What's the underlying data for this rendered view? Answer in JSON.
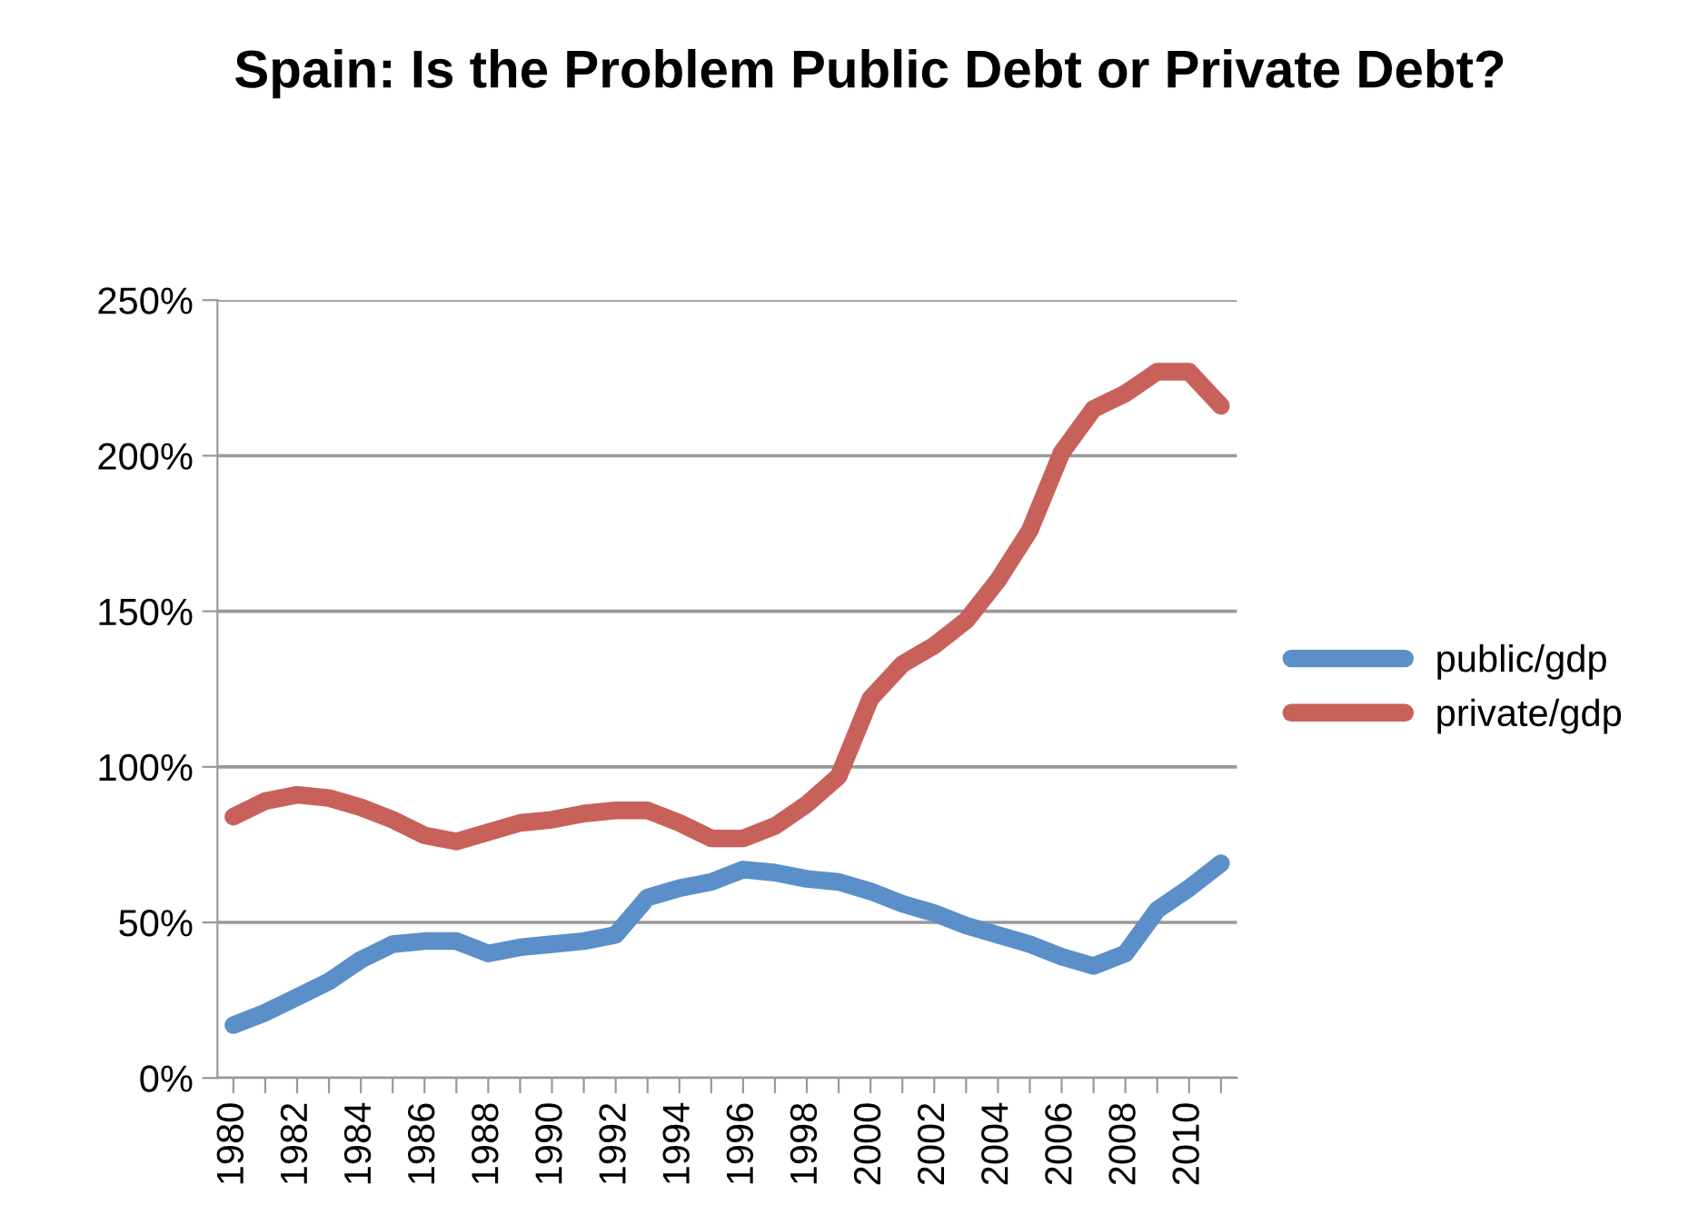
{
  "chart_data": {
    "type": "line",
    "title": "Spain: Is the Problem Public Debt or Private Debt?",
    "categories": [
      "1980",
      null,
      "1982",
      null,
      "1984",
      null,
      "1986",
      null,
      "1988",
      null,
      "1990",
      null,
      "1992",
      null,
      "1994",
      null,
      "1996",
      null,
      "1998",
      null,
      "2000",
      null,
      "2002",
      null,
      "2004",
      null,
      "2006",
      null,
      "2008",
      null,
      "2010",
      null
    ],
    "series": [
      {
        "name": "public/gdp",
        "color": "#5b8fc9",
        "values": [
          17,
          21,
          26,
          31,
          38,
          43,
          44,
          44,
          40,
          42,
          43,
          44,
          46,
          58,
          61,
          63,
          67,
          66,
          64,
          63,
          60,
          56,
          53,
          49,
          46,
          43,
          39,
          36,
          40,
          54,
          61,
          69
        ]
      },
      {
        "name": "private/gdp",
        "color": "#c8615a",
        "values": [
          84,
          89,
          91,
          90,
          87,
          83,
          78,
          76,
          79,
          82,
          83,
          85,
          86,
          86,
          82,
          77,
          77,
          81,
          88,
          97,
          122,
          133,
          139,
          147,
          160,
          176,
          201,
          215,
          220,
          227,
          227,
          216
        ]
      }
    ],
    "ylim": [
      0,
      250
    ],
    "yticks": [
      {
        "value": 0,
        "label": "0%"
      },
      {
        "value": 50,
        "label": "50%"
      },
      {
        "value": 100,
        "label": "100%"
      },
      {
        "value": 150,
        "label": "150%"
      },
      {
        "value": 200,
        "label": "200%"
      },
      {
        "value": 250,
        "label": "250%"
      }
    ],
    "grid": "y",
    "legend": "right",
    "marker": "none",
    "line_style": "solid"
  }
}
